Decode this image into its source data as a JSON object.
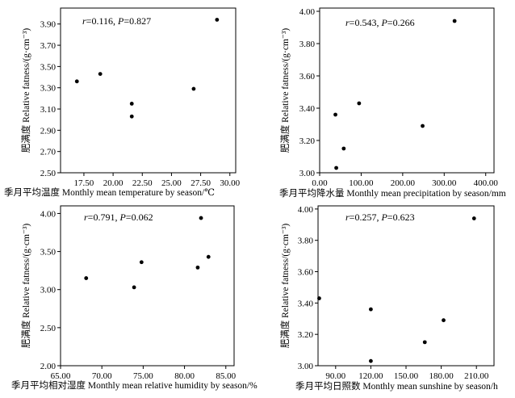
{
  "chart_data": [
    {
      "type": "scatter",
      "annotation": {
        "r_label": "r",
        "r_value": "=0.116, ",
        "p_label": "P",
        "p_value": "=0.827"
      },
      "xlabel": "季月平均温度 Monthly mean temperature by season/℃",
      "ylabel": "肥满度 Relative fatness/(g·cm⁻³)",
      "xlim": [
        15.5,
        30.5
      ],
      "ylim": [
        2.5,
        4.05
      ],
      "xticks": [
        "17.50",
        "20.00",
        "22.50",
        "25.00",
        "27.50",
        "30.00"
      ],
      "xtick_values": [
        17.5,
        20.0,
        22.5,
        25.0,
        27.5,
        30.0
      ],
      "yticks": [
        "2.50",
        "2.70",
        "2.90",
        "3.10",
        "3.30",
        "3.50",
        "3.70",
        "3.90"
      ],
      "ytick_values": [
        2.5,
        2.7,
        2.9,
        3.1,
        3.3,
        3.5,
        3.7,
        3.9
      ],
      "points": [
        {
          "x": 16.9,
          "y": 3.36
        },
        {
          "x": 18.9,
          "y": 3.43
        },
        {
          "x": 21.6,
          "y": 3.15
        },
        {
          "x": 21.6,
          "y": 3.03
        },
        {
          "x": 26.9,
          "y": 3.29
        },
        {
          "x": 28.9,
          "y": 3.94
        }
      ]
    },
    {
      "type": "scatter",
      "annotation": {
        "r_label": "r",
        "r_value": "=0.543, ",
        "p_label": "P",
        "p_value": "=0.266"
      },
      "xlabel": "季月平均降水量 Monthly mean precipitation by season/mm",
      "ylabel": "肥满度 Relative fatness/(g·cm⁻³)",
      "xlim": [
        0,
        420
      ],
      "ylim": [
        3.0,
        4.02
      ],
      "xticks": [
        "0.00",
        "100.00",
        "200.00",
        "300.00",
        "400.00"
      ],
      "xtick_values": [
        0,
        100,
        200,
        300,
        400
      ],
      "yticks": [
        "3.00",
        "3.20",
        "3.40",
        "3.60",
        "3.80",
        "4.00"
      ],
      "ytick_values": [
        3.0,
        3.2,
        3.4,
        3.6,
        3.8,
        4.0
      ],
      "points": [
        {
          "x": 38,
          "y": 3.36
        },
        {
          "x": 40,
          "y": 3.03
        },
        {
          "x": 58,
          "y": 3.15
        },
        {
          "x": 95,
          "y": 3.43
        },
        {
          "x": 248,
          "y": 3.29
        },
        {
          "x": 325,
          "y": 3.94
        }
      ]
    },
    {
      "type": "scatter",
      "annotation": {
        "r_label": "r",
        "r_value": "=0.791, ",
        "p_label": "P",
        "p_value": "=0.062"
      },
      "xlabel": "季月平均相对湿度 Monthly mean relative humidity by season/%",
      "ylabel": "肥满度 Relative fatness/(g·cm⁻³)",
      "xlim": [
        65.0,
        86.0
      ],
      "ylim": [
        2.0,
        4.1
      ],
      "xticks": [
        "65.00",
        "70.00",
        "75.00",
        "80.00",
        "85.00"
      ],
      "xtick_values": [
        65,
        70,
        75,
        80,
        85
      ],
      "yticks": [
        "2.00",
        "2.50",
        "3.00",
        "3.50",
        "4.00"
      ],
      "ytick_values": [
        2.0,
        2.5,
        3.0,
        3.5,
        4.0
      ],
      "points": [
        {
          "x": 68.1,
          "y": 3.15
        },
        {
          "x": 73.9,
          "y": 3.03
        },
        {
          "x": 74.8,
          "y": 3.36
        },
        {
          "x": 81.6,
          "y": 3.29
        },
        {
          "x": 82.0,
          "y": 3.94
        },
        {
          "x": 82.9,
          "y": 3.43
        }
      ]
    },
    {
      "type": "scatter",
      "annotation": {
        "r_label": "r",
        "r_value": "=0.257, ",
        "p_label": "P",
        "p_value": "=0.623"
      },
      "xlabel": "季月平均日照数 Monthly mean sunshine by season/h",
      "ylabel": "肥满度 Relative fatness/(g·cm⁻³)",
      "xlim": [
        75,
        225
      ],
      "ylim": [
        3.0,
        4.02
      ],
      "xticks": [
        "90.00",
        "120.00",
        "150.00",
        "180.00",
        "210.00"
      ],
      "xtick_values": [
        90,
        120,
        150,
        180,
        210
      ],
      "yticks": [
        "3.00",
        "3.20",
        "3.40",
        "3.60",
        "3.80",
        "4.00"
      ],
      "ytick_values": [
        3.0,
        3.2,
        3.4,
        3.6,
        3.8,
        4.0
      ],
      "points": [
        {
          "x": 76,
          "y": 3.43
        },
        {
          "x": 120,
          "y": 3.36
        },
        {
          "x": 120,
          "y": 3.03
        },
        {
          "x": 166,
          "y": 3.15
        },
        {
          "x": 182,
          "y": 3.29
        },
        {
          "x": 208,
          "y": 3.94
        }
      ]
    }
  ]
}
